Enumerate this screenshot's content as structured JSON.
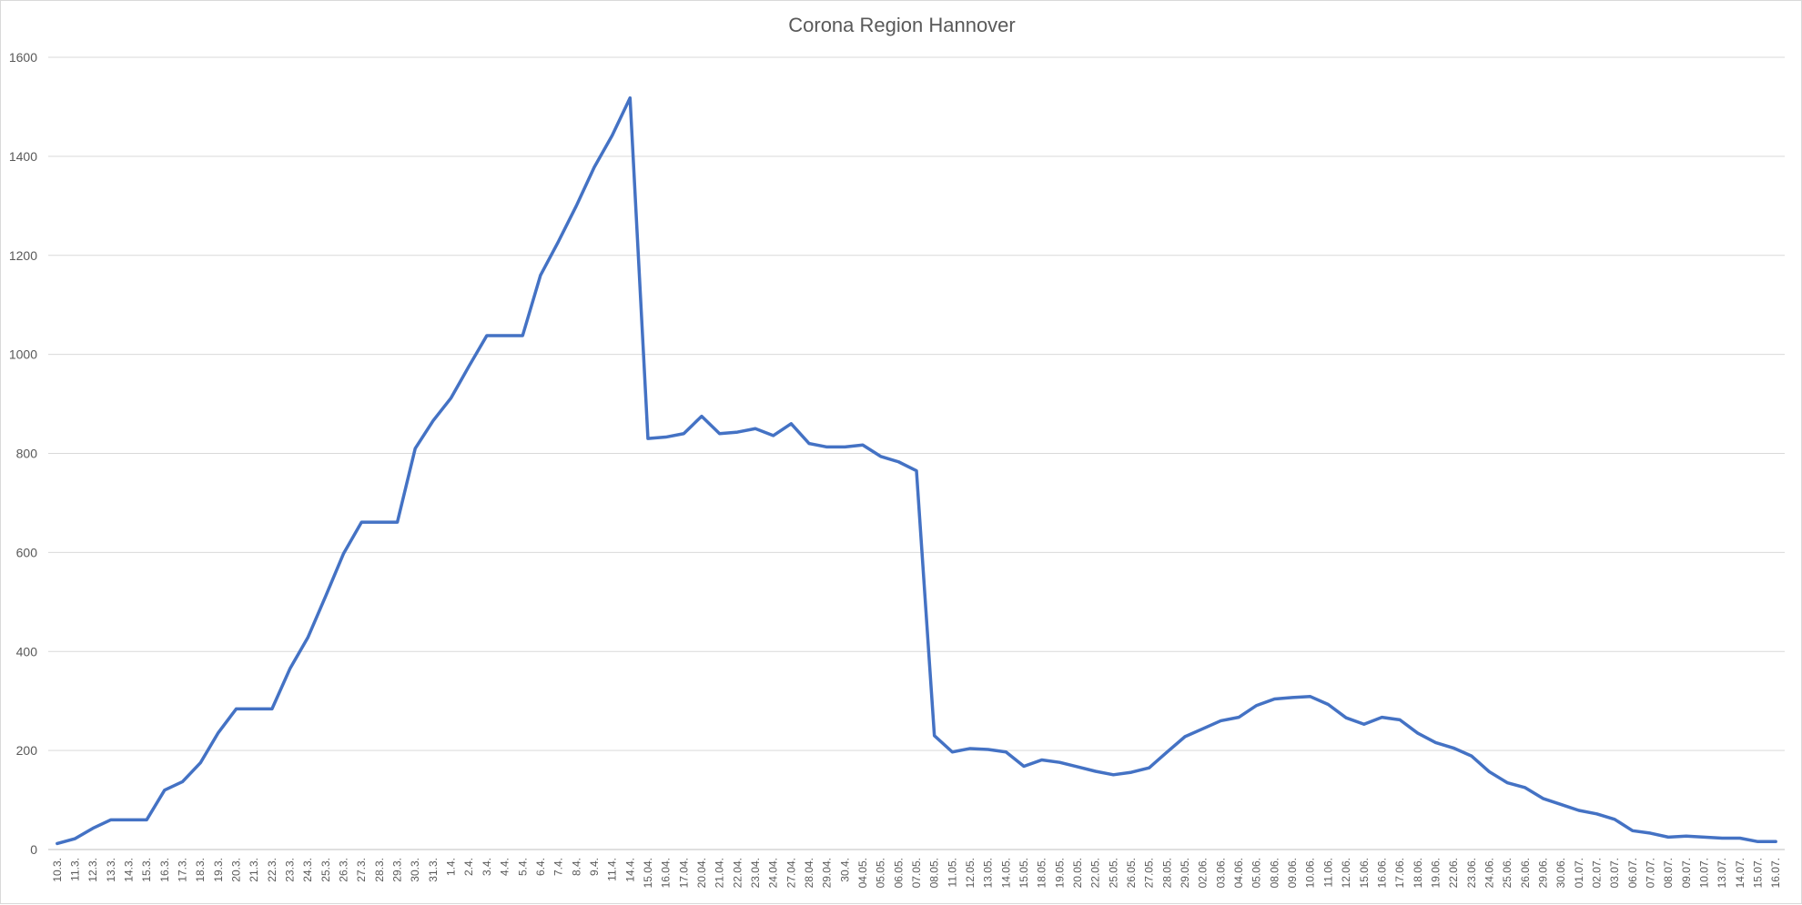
{
  "chart_data": {
    "type": "line",
    "title": "Corona Region Hannover",
    "xlabel": "",
    "ylabel": "",
    "ylim": [
      0,
      1600
    ],
    "yticks": [
      0,
      200,
      400,
      600,
      800,
      1000,
      1200,
      1400,
      1600
    ],
    "grid": true,
    "legend": "none",
    "series_color": "#4472C4",
    "x": [
      "10.3.",
      "11.3.",
      "12.3.",
      "13.3.",
      "14.3.",
      "15.3.",
      "16.3.",
      "17.3.",
      "18.3.",
      "19.3.",
      "20.3.",
      "21.3.",
      "22.3.",
      "23.3.",
      "24.3.",
      "25.3.",
      "26.3.",
      "27.3.",
      "28.3.",
      "29.3.",
      "30.3.",
      "31.3.",
      "1.4.",
      "2.4.",
      "3.4.",
      "4.4.",
      "5.4.",
      "6.4.",
      "7.4.",
      "8.4.",
      "9.4.",
      "11.4.",
      "14.4.",
      "15.04.",
      "16.04.",
      "17.04.",
      "20.04.",
      "21.04.",
      "22.04.",
      "23.04.",
      "24.04.",
      "27.04.",
      "28.04.",
      "29.04.",
      "30.4.",
      "04.05.",
      "05.05.",
      "06.05.",
      "07.05.",
      "08.05.",
      "11.05.",
      "12.05.",
      "13.05.",
      "14.05.",
      "15.05.",
      "18.05.",
      "19.05.",
      "20.05.",
      "22.05.",
      "25.05.",
      "26.05.",
      "27.05.",
      "28.05.",
      "29.05.",
      "02.06.",
      "03.06.",
      "04.06.",
      "05.06.",
      "08.06.",
      "09.06.",
      "10.06.",
      "11.06.",
      "12.06.",
      "15.06.",
      "16.06.",
      "17.06.",
      "18.06.",
      "19.06.",
      "22.06.",
      "23.06.",
      "24.06.",
      "25.06.",
      "26.06.",
      "29.06.",
      "30.06.",
      "01.07.",
      "02.07.",
      "03.07.",
      "06.07.",
      "07.07.",
      "08.07.",
      "09.07.",
      "10.07.",
      "13.07.",
      "14.07.",
      "15.07.",
      "16.07."
    ],
    "series": [
      {
        "values": [
          12,
          22,
          43,
          60,
          60,
          60,
          120,
          137,
          175,
          236,
          284,
          284,
          284,
          365,
          428,
          512,
          598,
          661,
          661,
          661,
          810,
          866,
          912,
          976,
          1038,
          1038,
          1038,
          1160,
          1228,
          1300,
          1378,
          1442,
          1518,
          830,
          833,
          840,
          875,
          840,
          843,
          850,
          836,
          860,
          820,
          813,
          813,
          817,
          794,
          783,
          765,
          230,
          197,
          204,
          202,
          197,
          168,
          181,
          176,
          167,
          158,
          151,
          156,
          165,
          197,
          228,
          244,
          260,
          267,
          291,
          304,
          307,
          309,
          293,
          266,
          253,
          267,
          262,
          235,
          216,
          205,
          189,
          157,
          135,
          125,
          103,
          91,
          79,
          72,
          61,
          38,
          33,
          25,
          27,
          25,
          23,
          23,
          16,
          16
        ]
      }
    ]
  }
}
